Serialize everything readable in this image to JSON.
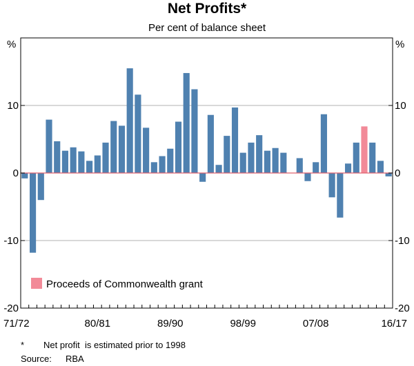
{
  "chart_data": {
    "type": "bar",
    "title": "Net Profits*",
    "subtitle": "Per cent of balance sheet",
    "ylabel_left": "%",
    "ylabel_right": "%",
    "ylim": [
      -20,
      20
    ],
    "yticks": [
      -20,
      -10,
      0,
      10
    ],
    "x_tick_labels": [
      "71/72",
      "80/81",
      "89/90",
      "98/99",
      "07/08",
      "16/17"
    ],
    "categories": [
      "71/72",
      "72/73",
      "73/74",
      "74/75",
      "75/76",
      "76/77",
      "77/78",
      "78/79",
      "79/80",
      "80/81",
      "81/82",
      "82/83",
      "83/84",
      "84/85",
      "85/86",
      "86/87",
      "87/88",
      "88/89",
      "89/90",
      "90/91",
      "91/92",
      "92/93",
      "93/94",
      "94/95",
      "95/96",
      "96/97",
      "97/98",
      "98/99",
      "99/00",
      "00/01",
      "01/02",
      "02/03",
      "03/04",
      "04/05",
      "05/06",
      "06/07",
      "07/08",
      "08/09",
      "09/10",
      "10/11",
      "11/12",
      "12/13",
      "13/14",
      "14/15",
      "15/16",
      "16/17"
    ],
    "series": [
      {
        "name": "Net profit",
        "color": "#4f81b0",
        "values": [
          -0.8,
          -11.8,
          -4.0,
          7.9,
          4.7,
          3.3,
          3.8,
          3.2,
          1.8,
          2.6,
          4.5,
          7.7,
          7.0,
          15.5,
          11.6,
          6.7,
          1.6,
          2.5,
          3.6,
          7.6,
          14.8,
          12.4,
          -1.3,
          8.6,
          1.2,
          5.5,
          9.7,
          3.0,
          4.5,
          5.6,
          3.3,
          3.7,
          3.0,
          0.0,
          2.2,
          -1.2,
          1.6,
          8.7,
          -3.6,
          -6.6,
          1.4,
          4.5,
          0.0,
          4.5,
          1.8,
          -0.5
        ]
      },
      {
        "name": "Proceeds of Commonwealth grant",
        "color": "#f28a98",
        "values": [
          0,
          0,
          0,
          0,
          0,
          0,
          0,
          0,
          0,
          0,
          0,
          0,
          0,
          0,
          0,
          0,
          0,
          0,
          0,
          0,
          0,
          0,
          0,
          0,
          0,
          0,
          0,
          0,
          0,
          0,
          0,
          0,
          0,
          0,
          0,
          0,
          0,
          0,
          0,
          0,
          0,
          0,
          6.9,
          0,
          0,
          0
        ]
      }
    ],
    "legend": {
      "label": "Proceeds of Commonwealth grant",
      "color": "#f28a98",
      "position": "bottom-left"
    },
    "zero_line_color": "#e0606e"
  },
  "footnote": {
    "marker": "*",
    "text": "Net profit  is estimated prior to 1998"
  },
  "source": {
    "label": "Source:",
    "text": "RBA"
  }
}
